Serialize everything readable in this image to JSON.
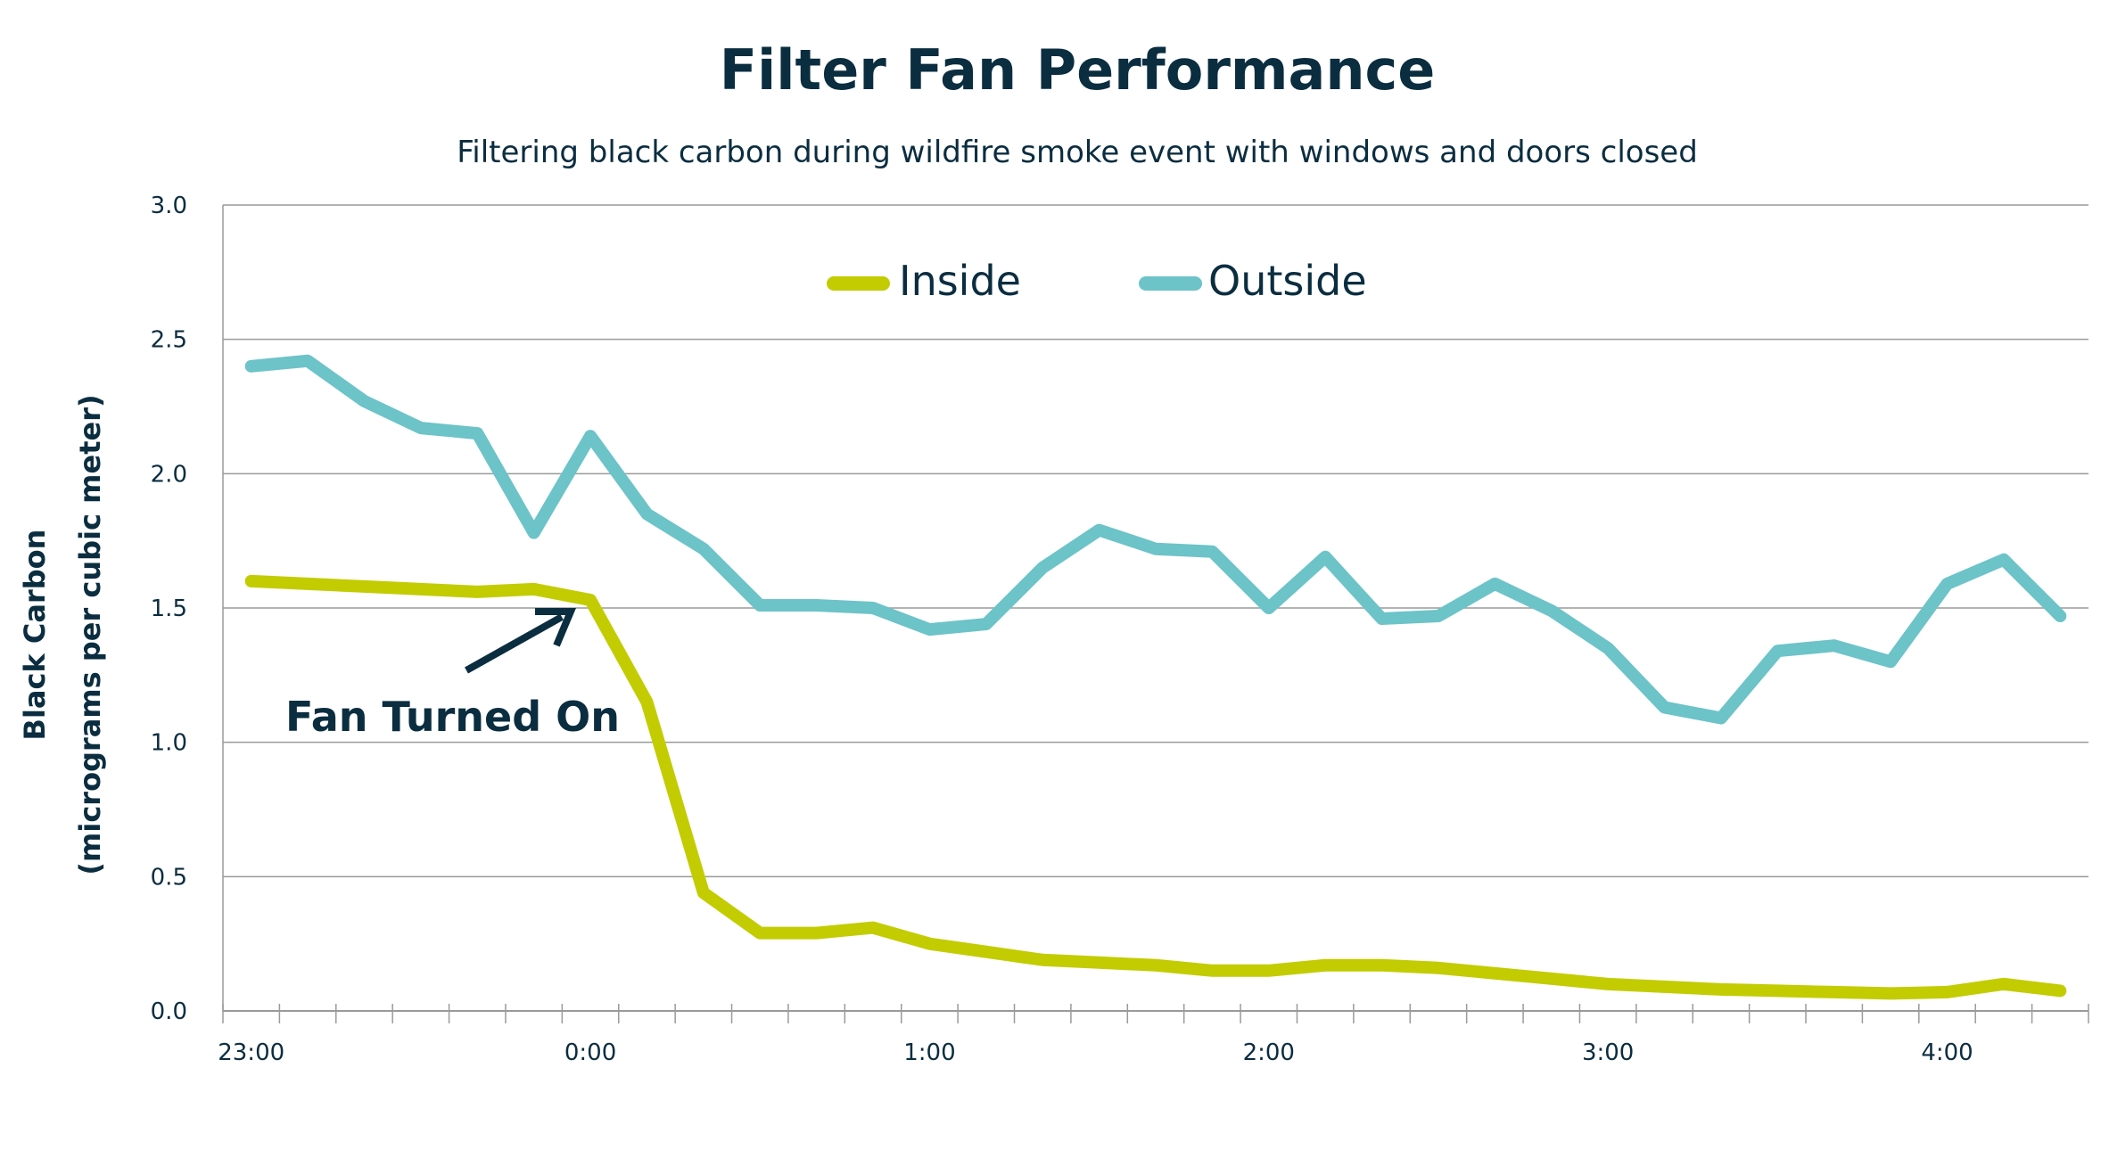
{
  "chart_data": {
    "type": "line",
    "title": "Filter Fan Performance",
    "subtitle": "Filtering black carbon during wildfire smoke event with windows and doors closed",
    "ylabel": "Black Carbon",
    "ylabel_units": "(micrograms per cubic meter)",
    "xlabel": "",
    "ylim": [
      0,
      3.0
    ],
    "y_ticks": [
      "0.0",
      "0.5",
      "1.0",
      "1.5",
      "2.0",
      "2.5",
      "3.0"
    ],
    "x": [
      "23:00",
      "23:10",
      "23:20",
      "23:30",
      "23:40",
      "23:50",
      "0:00",
      "0:10",
      "0:20",
      "0:30",
      "0:40",
      "0:50",
      "1:00",
      "1:10",
      "1:20",
      "1:30",
      "1:40",
      "1:50",
      "2:00",
      "2:10",
      "2:20",
      "2:30",
      "2:40",
      "2:50",
      "3:00",
      "3:10",
      "3:20",
      "3:30",
      "3:40",
      "3:50",
      "4:00",
      "4:10",
      "4:20"
    ],
    "x_tick_labels": [
      "23:00",
      "0:00",
      "1:00",
      "2:00",
      "3:00",
      "4:00"
    ],
    "grid": "horizontal",
    "legend_position": "top-center",
    "series": [
      {
        "name": "Inside",
        "color": "#c2cc00",
        "values": [
          1.6,
          1.59,
          1.58,
          1.57,
          1.56,
          1.57,
          1.53,
          1.15,
          0.44,
          0.29,
          0.29,
          0.31,
          0.25,
          0.22,
          0.19,
          0.18,
          0.17,
          0.15,
          0.15,
          0.17,
          0.17,
          0.16,
          0.14,
          0.12,
          0.1,
          0.09,
          0.08,
          0.075,
          0.07,
          0.065,
          0.07,
          0.1,
          0.075
        ]
      },
      {
        "name": "Outside",
        "color": "#6cc3c8",
        "values": [
          2.4,
          2.42,
          2.27,
          2.17,
          2.15,
          1.78,
          2.14,
          1.85,
          1.72,
          1.51,
          1.51,
          1.5,
          1.42,
          1.44,
          1.65,
          1.79,
          1.72,
          1.71,
          1.5,
          1.69,
          1.46,
          1.47,
          1.59,
          1.49,
          1.35,
          1.13,
          1.09,
          1.34,
          1.36,
          1.3,
          1.59,
          1.68,
          1.47
        ]
      }
    ],
    "annotations": [
      {
        "text": "Fan Turned On",
        "x": "0:00",
        "series": "Inside"
      }
    ],
    "colors": {
      "text": "#0b2d40",
      "grid": "#9a9a9a"
    }
  }
}
